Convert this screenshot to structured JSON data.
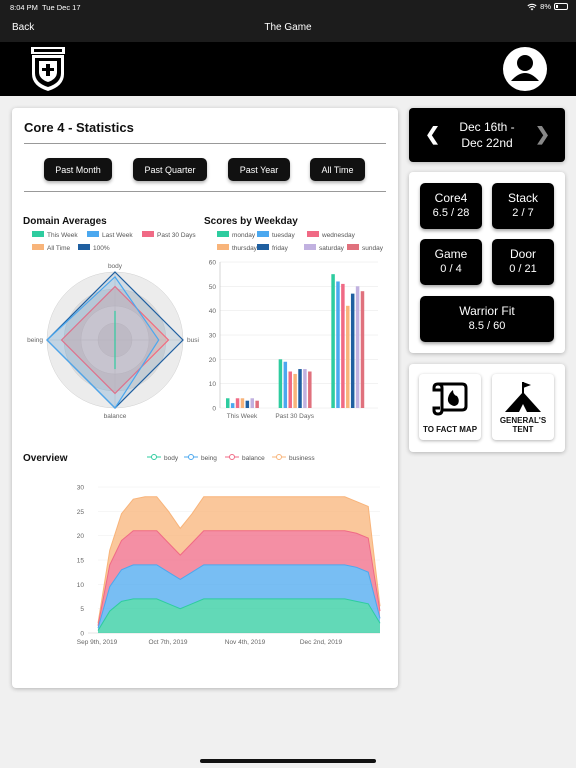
{
  "status": {
    "time": "8:04 PM",
    "date": "Tue Dec 17",
    "battery": "8%"
  },
  "nav": {
    "back": "Back",
    "title": "The Game"
  },
  "stats": {
    "title": "Core 4 - Statistics",
    "ranges": [
      "Past Month",
      "Past Quarter",
      "Past Year",
      "All Time"
    ],
    "domain_title": "Domain Averages",
    "weekday_title": "Scores by Weekday",
    "overview_title": "Overview"
  },
  "week": {
    "label": "Dec 16th -\nDec 22nd"
  },
  "tiles": [
    {
      "name": "Core4",
      "value": "6.5 / 28"
    },
    {
      "name": "Stack",
      "value": "2 / 7"
    },
    {
      "name": "Game",
      "value": "0 / 4"
    },
    {
      "name": "Door",
      "value": "0 / 21"
    },
    {
      "name": "Warrior Fit",
      "value": "8.5 / 60"
    }
  ],
  "nav_buttons": [
    {
      "label": "TO FACT MAP",
      "icon": "scroll-fire-icon"
    },
    {
      "label": "GENERAL'S\nTENT",
      "icon": "tent-flag-icon"
    }
  ],
  "colors": {
    "accent": "#000000",
    "teal": "#2ecc9f",
    "blue": "#4ba8ef",
    "pink": "#f06a85",
    "orange": "#f8b47a",
    "navy": "#1f5fa0",
    "purple": "#c1b1e0",
    "rose": "#e0717d"
  },
  "chart_data": [
    {
      "type": "radar",
      "title": "Domain Averages",
      "axes": [
        "body",
        "business",
        "balance",
        "being"
      ],
      "series": [
        {
          "name": "This Week",
          "values": [
            3,
            0,
            3,
            0
          ]
        },
        {
          "name": "Last Week",
          "values": [
            6.5,
            4.5,
            7,
            7
          ]
        },
        {
          "name": "Past 30 Days",
          "values": [
            5.5,
            5.5,
            5.5,
            5.5
          ]
        },
        {
          "name": "All Time",
          "values": [
            5.5,
            5.5,
            5.5,
            5.5
          ]
        },
        {
          "name": "100%",
          "values": [
            7,
            7,
            7,
            7
          ]
        }
      ],
      "rmax": 7
    },
    {
      "type": "bar",
      "title": "Scores by Weekday",
      "categories": [
        "This Week",
        "Past 30 Days"
      ],
      "series": [
        {
          "name": "monday",
          "values": [
            4,
            20
          ]
        },
        {
          "name": "tuesday",
          "values": [
            2,
            19
          ]
        },
        {
          "name": "wednesday",
          "values": [
            4,
            15
          ]
        },
        {
          "name": "thursday",
          "values": [
            4,
            14
          ]
        },
        {
          "name": "friday",
          "values": [
            3,
            16
          ]
        },
        {
          "name": "saturday",
          "values": [
            4,
            16
          ]
        },
        {
          "name": "sunday",
          "values": [
            3,
            15
          ]
        }
      ],
      "extra_group": {
        "values": [
          55,
          52,
          51,
          42,
          47,
          50,
          48
        ]
      },
      "ylim": [
        0,
        60
      ],
      "yticks": [
        0,
        10,
        20,
        30,
        40,
        50,
        60
      ]
    },
    {
      "type": "area",
      "title": "Overview",
      "x_ticks": [
        "Sep 9th, 2019",
        "Oct 7th, 2019",
        "Nov 4th, 2019",
        "Dec 2nd, 2019"
      ],
      "series": [
        {
          "name": "body",
          "values": [
            0.5,
            4.5,
            6.5,
            7,
            7,
            7,
            6,
            5,
            6,
            7,
            7,
            7,
            7,
            7,
            7,
            7,
            7,
            7,
            7,
            7,
            7,
            7,
            6.5,
            6,
            2
          ]
        },
        {
          "name": "being",
          "values": [
            0.5,
            5,
            6.5,
            7,
            7,
            7,
            6.5,
            6,
            6.5,
            7,
            7,
            7,
            7,
            7,
            7,
            7,
            7,
            7,
            7,
            7,
            7,
            7,
            7,
            6.5,
            1
          ]
        },
        {
          "name": "balance",
          "values": [
            0.5,
            4.5,
            6,
            7,
            7,
            7,
            6,
            5,
            6,
            7,
            7,
            7,
            7,
            7,
            7,
            7,
            7,
            7,
            7,
            7,
            7,
            7,
            7,
            7,
            1.5
          ]
        },
        {
          "name": "business",
          "values": [
            0.5,
            3,
            5.5,
            6.5,
            7,
            7,
            6.5,
            5.5,
            6,
            7,
            7,
            7,
            7,
            7,
            7,
            7,
            7,
            7,
            7,
            7,
            7,
            7,
            6.5,
            6.5,
            1
          ]
        }
      ],
      "ylim": [
        0,
        30
      ],
      "yticks": [
        0,
        5,
        10,
        15,
        20,
        25,
        30
      ],
      "stacked": true
    }
  ]
}
